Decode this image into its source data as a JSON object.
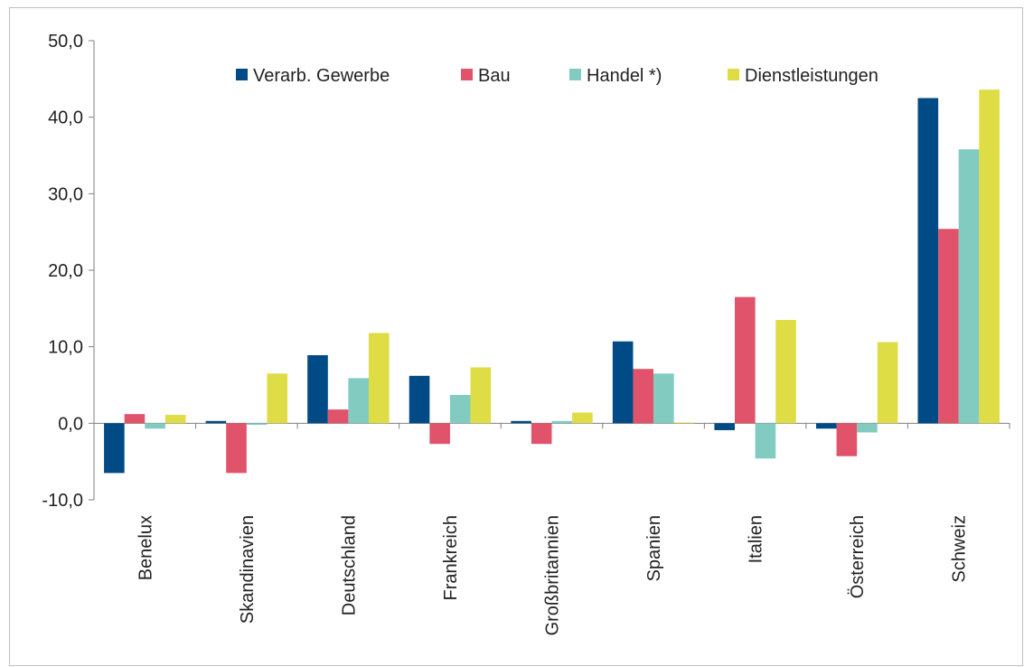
{
  "chart_data": {
    "type": "bar",
    "title": "",
    "xlabel": "",
    "ylabel": "",
    "ylim": [
      -10,
      50
    ],
    "yticks": [
      -10,
      0,
      10,
      20,
      30,
      40,
      50
    ],
    "ytick_labels": [
      "-10,0",
      "0,0",
      "10,0",
      "20,0",
      "30,0",
      "40,0",
      "50,0"
    ],
    "grid": false,
    "legend_position": "top",
    "categories": [
      "Benelux",
      "Skandinavien",
      "Deutschland",
      "Frankreich",
      "Großbritannien",
      "Spanien",
      "Italien",
      "Österreich",
      "Schweiz"
    ],
    "series": [
      {
        "name": "Verarb. Gewerbe",
        "color": "#004a86",
        "values": [
          -6.5,
          0.3,
          8.9,
          6.2,
          0.3,
          10.7,
          -0.9,
          -0.7,
          42.5
        ]
      },
      {
        "name": "Bau",
        "color": "#e0536a",
        "values": [
          1.2,
          -6.5,
          1.8,
          -2.7,
          -2.7,
          7.1,
          16.5,
          -4.3,
          25.4
        ]
      },
      {
        "name": "Handel *)",
        "color": "#82cbc1",
        "values": [
          -0.7,
          -0.2,
          5.9,
          3.7,
          0.3,
          6.5,
          -4.6,
          -1.2,
          35.8
        ]
      },
      {
        "name": "Dienstleistungen",
        "color": "#dedd45",
        "values": [
          1.1,
          6.5,
          11.8,
          7.3,
          1.4,
          0.1,
          13.5,
          10.6,
          43.6
        ]
      }
    ]
  }
}
